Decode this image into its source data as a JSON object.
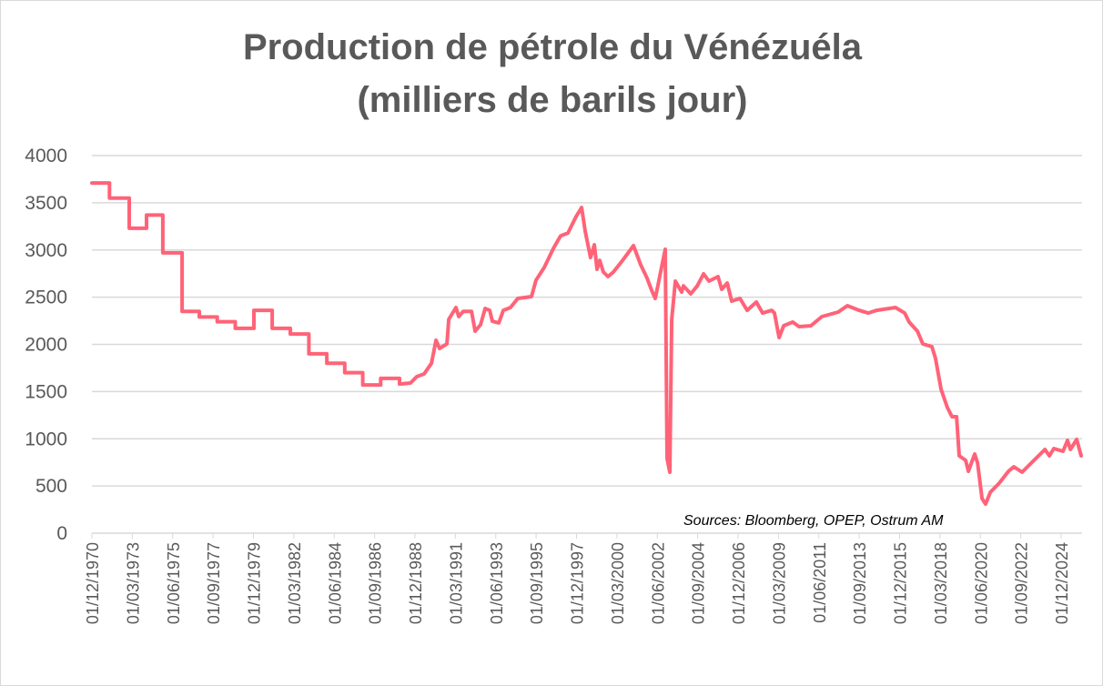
{
  "chart_data": {
    "type": "line",
    "title": [
      "Production de pétrole du Vénézuéla",
      "(milliers de barils jour)"
    ],
    "xlabel": "",
    "ylabel": "",
    "ylim": [
      0,
      4000
    ],
    "xlim": [
      1970.92,
      2026.06
    ],
    "y_ticks": [
      0,
      500,
      1000,
      1500,
      2000,
      2500,
      3000,
      3500,
      4000
    ],
    "x_tick_labels": [
      "01/12/1970",
      "01/03/1973",
      "01/06/1975",
      "01/09/1977",
      "01/12/1979",
      "01/03/1982",
      "01/06/1984",
      "01/09/1986",
      "01/12/1988",
      "01/03/1991",
      "01/06/1993",
      "01/09/1995",
      "01/12/1997",
      "01/03/2000",
      "01/06/2002",
      "01/09/2004",
      "01/12/2006",
      "01/03/2009",
      "01/06/2011",
      "01/09/2013",
      "01/12/2015",
      "01/03/2018",
      "01/06/2020",
      "01/09/2022",
      "01/12/2024"
    ],
    "grid": true,
    "legend": "none",
    "annotation": "Sources: Bloomberg, OPEP, Ostrum AM",
    "series": [
      {
        "name": "Production de pétrole du Vénézuéla",
        "color": "#FF6378",
        "points": [
          [
            1970.92,
            3710
          ],
          [
            1971.9,
            3710
          ],
          [
            1971.9,
            3550
          ],
          [
            1973.0,
            3550
          ],
          [
            1973.0,
            3230
          ],
          [
            1973.96,
            3230
          ],
          [
            1973.96,
            3370
          ],
          [
            1974.87,
            3370
          ],
          [
            1974.87,
            2970
          ],
          [
            1975.94,
            2970
          ],
          [
            1975.94,
            2350
          ],
          [
            1976.9,
            2350
          ],
          [
            1976.9,
            2290
          ],
          [
            1977.9,
            2290
          ],
          [
            1977.9,
            2240
          ],
          [
            1978.9,
            2240
          ],
          [
            1978.9,
            2170
          ],
          [
            1979.94,
            2170
          ],
          [
            1979.94,
            2360
          ],
          [
            1980.96,
            2360
          ],
          [
            1980.96,
            2170
          ],
          [
            1981.97,
            2170
          ],
          [
            1981.97,
            2110
          ],
          [
            1983.0,
            2110
          ],
          [
            1983.0,
            1900
          ],
          [
            1984.0,
            1900
          ],
          [
            1984.0,
            1800
          ],
          [
            1985.0,
            1800
          ],
          [
            1985.0,
            1700
          ],
          [
            1986.0,
            1700
          ],
          [
            1986.0,
            1570
          ],
          [
            1987.0,
            1570
          ],
          [
            1987.0,
            1640
          ],
          [
            1988.05,
            1640
          ],
          [
            1988.05,
            1580
          ],
          [
            1988.66,
            1590
          ],
          [
            1989.01,
            1658
          ],
          [
            1989.42,
            1687
          ],
          [
            1989.83,
            1800
          ],
          [
            1990.08,
            2043
          ],
          [
            1990.28,
            1957
          ],
          [
            1990.69,
            2005
          ],
          [
            1990.79,
            2265
          ],
          [
            1991.19,
            2390
          ],
          [
            1991.35,
            2294
          ],
          [
            1991.6,
            2350
          ],
          [
            1992.06,
            2350
          ],
          [
            1992.26,
            2140
          ],
          [
            1992.56,
            2207
          ],
          [
            1992.82,
            2380
          ],
          [
            1993.07,
            2360
          ],
          [
            1993.22,
            2245
          ],
          [
            1993.58,
            2227
          ],
          [
            1993.83,
            2360
          ],
          [
            1994.23,
            2390
          ],
          [
            1994.64,
            2487
          ],
          [
            1995.4,
            2506
          ],
          [
            1995.65,
            2680
          ],
          [
            1996.11,
            2814
          ],
          [
            1996.62,
            3017
          ],
          [
            1997.02,
            3150
          ],
          [
            1997.43,
            3180
          ],
          [
            1997.88,
            3354
          ],
          [
            1998.19,
            3450
          ],
          [
            1998.39,
            3200
          ],
          [
            1998.69,
            2920
          ],
          [
            1998.9,
            3055
          ],
          [
            1999.05,
            2795
          ],
          [
            1999.2,
            2890
          ],
          [
            1999.4,
            2766
          ],
          [
            1999.66,
            2718
          ],
          [
            1999.96,
            2766
          ],
          [
            2000.47,
            2890
          ],
          [
            2001.08,
            3046
          ],
          [
            2001.48,
            2843
          ],
          [
            2001.84,
            2700
          ],
          [
            2002.09,
            2573
          ],
          [
            2002.29,
            2487
          ],
          [
            2002.45,
            2631
          ],
          [
            2002.7,
            2872
          ],
          [
            2002.85,
            3007
          ],
          [
            2002.95,
            790
          ],
          [
            2003.1,
            646
          ],
          [
            2003.21,
            2265
          ],
          [
            2003.41,
            2670
          ],
          [
            2003.76,
            2554
          ],
          [
            2003.86,
            2620
          ],
          [
            2004.27,
            2535
          ],
          [
            2004.63,
            2620
          ],
          [
            2004.98,
            2747
          ],
          [
            2005.28,
            2670
          ],
          [
            2005.79,
            2718
          ],
          [
            2005.99,
            2583
          ],
          [
            2006.3,
            2650
          ],
          [
            2006.55,
            2458
          ],
          [
            2007.01,
            2487
          ],
          [
            2007.41,
            2360
          ],
          [
            2007.92,
            2448
          ],
          [
            2008.27,
            2332
          ],
          [
            2008.78,
            2360
          ],
          [
            2008.93,
            2332
          ],
          [
            2009.19,
            2072
          ],
          [
            2009.44,
            2198
          ],
          [
            2009.95,
            2236
          ],
          [
            2010.3,
            2188
          ],
          [
            2010.96,
            2198
          ],
          [
            2011.57,
            2294
          ],
          [
            2012.48,
            2342
          ],
          [
            2012.99,
            2410
          ],
          [
            2013.65,
            2360
          ],
          [
            2014.15,
            2332
          ],
          [
            2014.61,
            2360
          ],
          [
            2015.67,
            2390
          ],
          [
            2016.18,
            2332
          ],
          [
            2016.43,
            2236
          ],
          [
            2016.89,
            2140
          ],
          [
            2017.19,
            2005
          ],
          [
            2017.7,
            1976
          ],
          [
            2017.9,
            1850
          ],
          [
            2018.21,
            1523
          ],
          [
            2018.56,
            1330
          ],
          [
            2018.82,
            1234
          ],
          [
            2019.07,
            1234
          ],
          [
            2019.22,
            819
          ],
          [
            2019.58,
            771
          ],
          [
            2019.73,
            655
          ],
          [
            2020.08,
            839
          ],
          [
            2020.24,
            742
          ],
          [
            2020.49,
            366
          ],
          [
            2020.69,
            308
          ],
          [
            2020.95,
            434
          ],
          [
            2021.45,
            530
          ],
          [
            2021.96,
            655
          ],
          [
            2022.26,
            703
          ],
          [
            2022.72,
            646
          ],
          [
            2023.28,
            752
          ],
          [
            2023.99,
            887
          ],
          [
            2024.24,
            819
          ],
          [
            2024.49,
            896
          ],
          [
            2025.0,
            867
          ],
          [
            2025.25,
            983
          ],
          [
            2025.41,
            887
          ],
          [
            2025.76,
            993
          ],
          [
            2026.01,
            819
          ]
        ]
      }
    ]
  }
}
